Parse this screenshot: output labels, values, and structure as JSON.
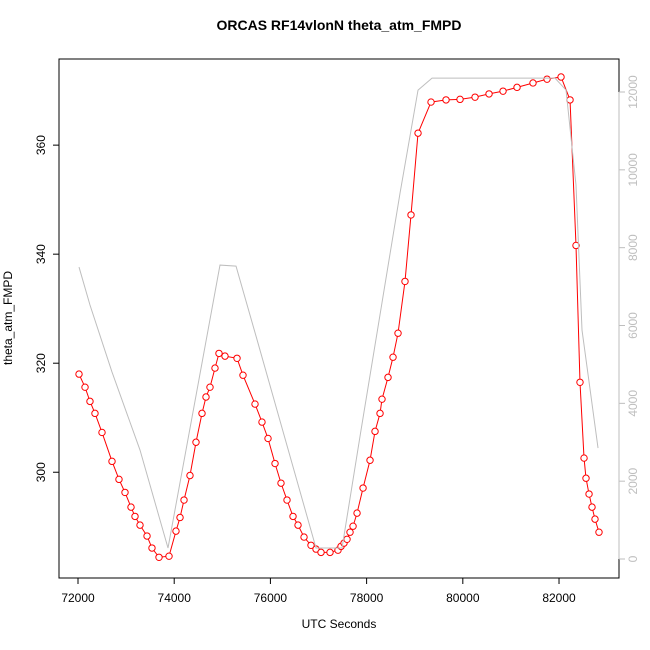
{
  "chart_data": {
    "type": "scatter",
    "title": "ORCAS RF14vlonN theta_atm_FMPD",
    "x_label": "UTC Seconds",
    "y_label": "theta_atm_FMPD",
    "xlim": [
      71605,
      83247
    ],
    "ylim": [
      280.6,
      375.8
    ],
    "y2lim": [
      -488,
      12848
    ],
    "xticks": [
      72000,
      74000,
      76000,
      78000,
      80000,
      82000
    ],
    "yticks": [
      300,
      320,
      340,
      360
    ],
    "y2ticks": [
      0,
      2000,
      4000,
      6000,
      8000,
      10000,
      12000
    ],
    "series": [
      {
        "color": "#ff0000",
        "mode": "lines+markers",
        "x": [
          72021,
          72146,
          72249,
          72353,
          72499,
          72707,
          72852,
          72977,
          73102,
          73185,
          73289,
          73435,
          73538,
          73684,
          73892,
          74037,
          74121,
          74204,
          74328,
          74453,
          74578,
          74661,
          74744,
          74848,
          74931,
          75056,
          75306,
          75430,
          75680,
          75825,
          75950,
          76096,
          76220,
          76345,
          76470,
          76574,
          76699,
          76844,
          76948,
          77052,
          77239,
          77405,
          77468,
          77530,
          77593,
          77655,
          77718,
          77801,
          77926,
          78071,
          78175,
          78279,
          78320,
          78445,
          78549,
          78653,
          78798,
          78923,
          79069,
          79339,
          79651,
          79942,
          80254,
          80545,
          80836,
          81127,
          81459,
          81751,
          82042,
          82229,
          82353,
          82436,
          82520,
          82561,
          82624,
          82686,
          82748,
          82831
        ],
        "values": [
          318.0,
          315.6,
          313.0,
          310.8,
          307.3,
          302.0,
          298.7,
          296.3,
          293.6,
          291.9,
          290.3,
          288.3,
          286.1,
          284.4,
          284.6,
          289.2,
          291.7,
          294.9,
          299.4,
          305.5,
          310.8,
          313.8,
          315.6,
          319.1,
          321.8,
          321.3,
          320.9,
          317.8,
          312.5,
          309.2,
          306.2,
          301.6,
          298.0,
          294.9,
          291.9,
          290.3,
          288.1,
          286.6,
          285.9,
          285.3,
          285.3,
          285.7,
          286.4,
          287.0,
          287.7,
          289.0,
          290.1,
          292.5,
          297.1,
          302.2,
          307.5,
          310.8,
          313.4,
          317.4,
          321.1,
          325.5,
          335.0,
          347.2,
          362.2,
          367.9,
          368.3,
          368.4,
          368.8,
          369.4,
          369.9,
          370.6,
          371.4,
          372.1,
          372.5,
          368.3,
          341.6,
          316.5,
          302.6,
          298.9,
          296.0,
          293.6,
          291.4,
          289.0
        ]
      },
      {
        "color": "#bebebe",
        "mode": "lines",
        "axis": "y2",
        "x": [
          72021,
          72249,
          72707,
          73289,
          73871,
          74952,
          75285,
          75742,
          76948,
          77489,
          77884,
          78695,
          79069,
          79360,
          81917,
          82146,
          82353,
          82478,
          82811
        ],
        "values": [
          7502,
          6526,
          4804,
          2800,
          283,
          7553,
          7527,
          5549,
          283,
          283,
          3314,
          9403,
          12049,
          12357,
          12357,
          12049,
          9608,
          5883,
          2852
        ]
      }
    ]
  }
}
